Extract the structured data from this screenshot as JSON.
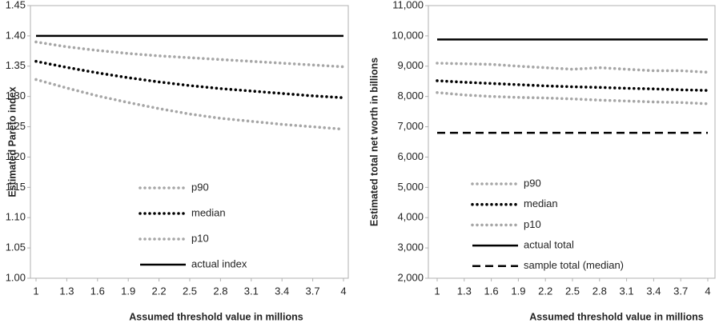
{
  "chart_data": [
    {
      "type": "line",
      "xlabel": "Assumed threshold value in millions",
      "ylabel": "Estimated Pareto index",
      "x": [
        1,
        1.3,
        1.6,
        1.9,
        2.2,
        2.5,
        2.8,
        3.1,
        3.4,
        3.7,
        4
      ],
      "xlim": [
        1,
        4
      ],
      "xticks": [
        1,
        1.3,
        1.6,
        1.9,
        2.2,
        2.5,
        2.8,
        3.1,
        3.4,
        3.7,
        4
      ],
      "ylim": [
        1.0,
        1.45
      ],
      "yticks": [
        {
          "value": 1.0,
          "label": "1.00"
        },
        {
          "value": 1.05,
          "label": "1.05"
        },
        {
          "value": 1.1,
          "label": "1.10"
        },
        {
          "value": 1.15,
          "label": "1.15"
        },
        {
          "value": 1.2,
          "label": "1.20"
        },
        {
          "value": 1.25,
          "label": "1.25"
        },
        {
          "value": 1.3,
          "label": "1.30"
        },
        {
          "value": 1.35,
          "label": "1.35"
        },
        {
          "value": 1.4,
          "label": "1.40"
        },
        {
          "value": 1.45,
          "label": "1.45"
        }
      ],
      "legend": "lower center",
      "series": [
        {
          "name": "p90",
          "color": "#a6a6a6",
          "dash": "dotted",
          "values": [
            1.39,
            1.382,
            1.376,
            1.371,
            1.367,
            1.364,
            1.361,
            1.358,
            1.355,
            1.352,
            1.349
          ]
        },
        {
          "name": "median",
          "color": "#000000",
          "dash": "dotted",
          "values": [
            1.358,
            1.348,
            1.339,
            1.331,
            1.324,
            1.318,
            1.313,
            1.309,
            1.305,
            1.301,
            1.298
          ]
        },
        {
          "name": "p10",
          "color": "#a6a6a6",
          "dash": "dotted",
          "values": [
            1.328,
            1.314,
            1.301,
            1.29,
            1.28,
            1.271,
            1.264,
            1.259,
            1.254,
            1.25,
            1.246
          ]
        },
        {
          "name": "actual index",
          "color": "#000000",
          "dash": "solid",
          "values": [
            1.4,
            1.4,
            1.4,
            1.4,
            1.4,
            1.4,
            1.4,
            1.4,
            1.4,
            1.4,
            1.4
          ]
        }
      ]
    },
    {
      "type": "line",
      "xlabel": "Assumed threshold value in millions",
      "ylabel": "Estimated total net worth  in billions",
      "x": [
        1,
        1.3,
        1.6,
        1.9,
        2.2,
        2.5,
        2.8,
        3.1,
        3.4,
        3.7,
        4
      ],
      "xlim": [
        1,
        4
      ],
      "xticks": [
        1,
        1.3,
        1.6,
        1.9,
        2.2,
        2.5,
        2.8,
        3.1,
        3.4,
        3.7,
        4
      ],
      "ylim": [
        2000,
        11000
      ],
      "yticks": [
        {
          "value": 2000,
          "label": "2,000"
        },
        {
          "value": 3000,
          "label": "3,000"
        },
        {
          "value": 4000,
          "label": "4,000"
        },
        {
          "value": 5000,
          "label": "5,000"
        },
        {
          "value": 6000,
          "label": "6,000"
        },
        {
          "value": 7000,
          "label": "7,000"
        },
        {
          "value": 8000,
          "label": "8,000"
        },
        {
          "value": 9000,
          "label": "9,000"
        },
        {
          "value": 10000,
          "label": "10,000"
        },
        {
          "value": 11000,
          "label": "11,000"
        }
      ],
      "legend": "lower center",
      "series": [
        {
          "name": "p90",
          "color": "#a6a6a6",
          "dash": "dotted",
          "values": [
            9100,
            9080,
            9060,
            9000,
            8950,
            8900,
            8950,
            8900,
            8850,
            8850,
            8800
          ]
        },
        {
          "name": "median",
          "color": "#000000",
          "dash": "dotted",
          "values": [
            8520,
            8470,
            8430,
            8390,
            8350,
            8320,
            8300,
            8270,
            8250,
            8220,
            8200
          ]
        },
        {
          "name": "p10",
          "color": "#a6a6a6",
          "dash": "dotted",
          "values": [
            8130,
            8050,
            8000,
            7970,
            7950,
            7920,
            7880,
            7850,
            7820,
            7800,
            7760
          ]
        },
        {
          "name": "actual total",
          "color": "#000000",
          "dash": "solid",
          "values": [
            9880,
            9880,
            9880,
            9880,
            9880,
            9880,
            9880,
            9880,
            9880,
            9880,
            9880
          ]
        },
        {
          "name": "sample total (median)",
          "color": "#000000",
          "dash": "dashed",
          "values": [
            6800,
            6800,
            6800,
            6800,
            6800,
            6800,
            6800,
            6800,
            6800,
            6800,
            6800
          ]
        }
      ]
    }
  ]
}
